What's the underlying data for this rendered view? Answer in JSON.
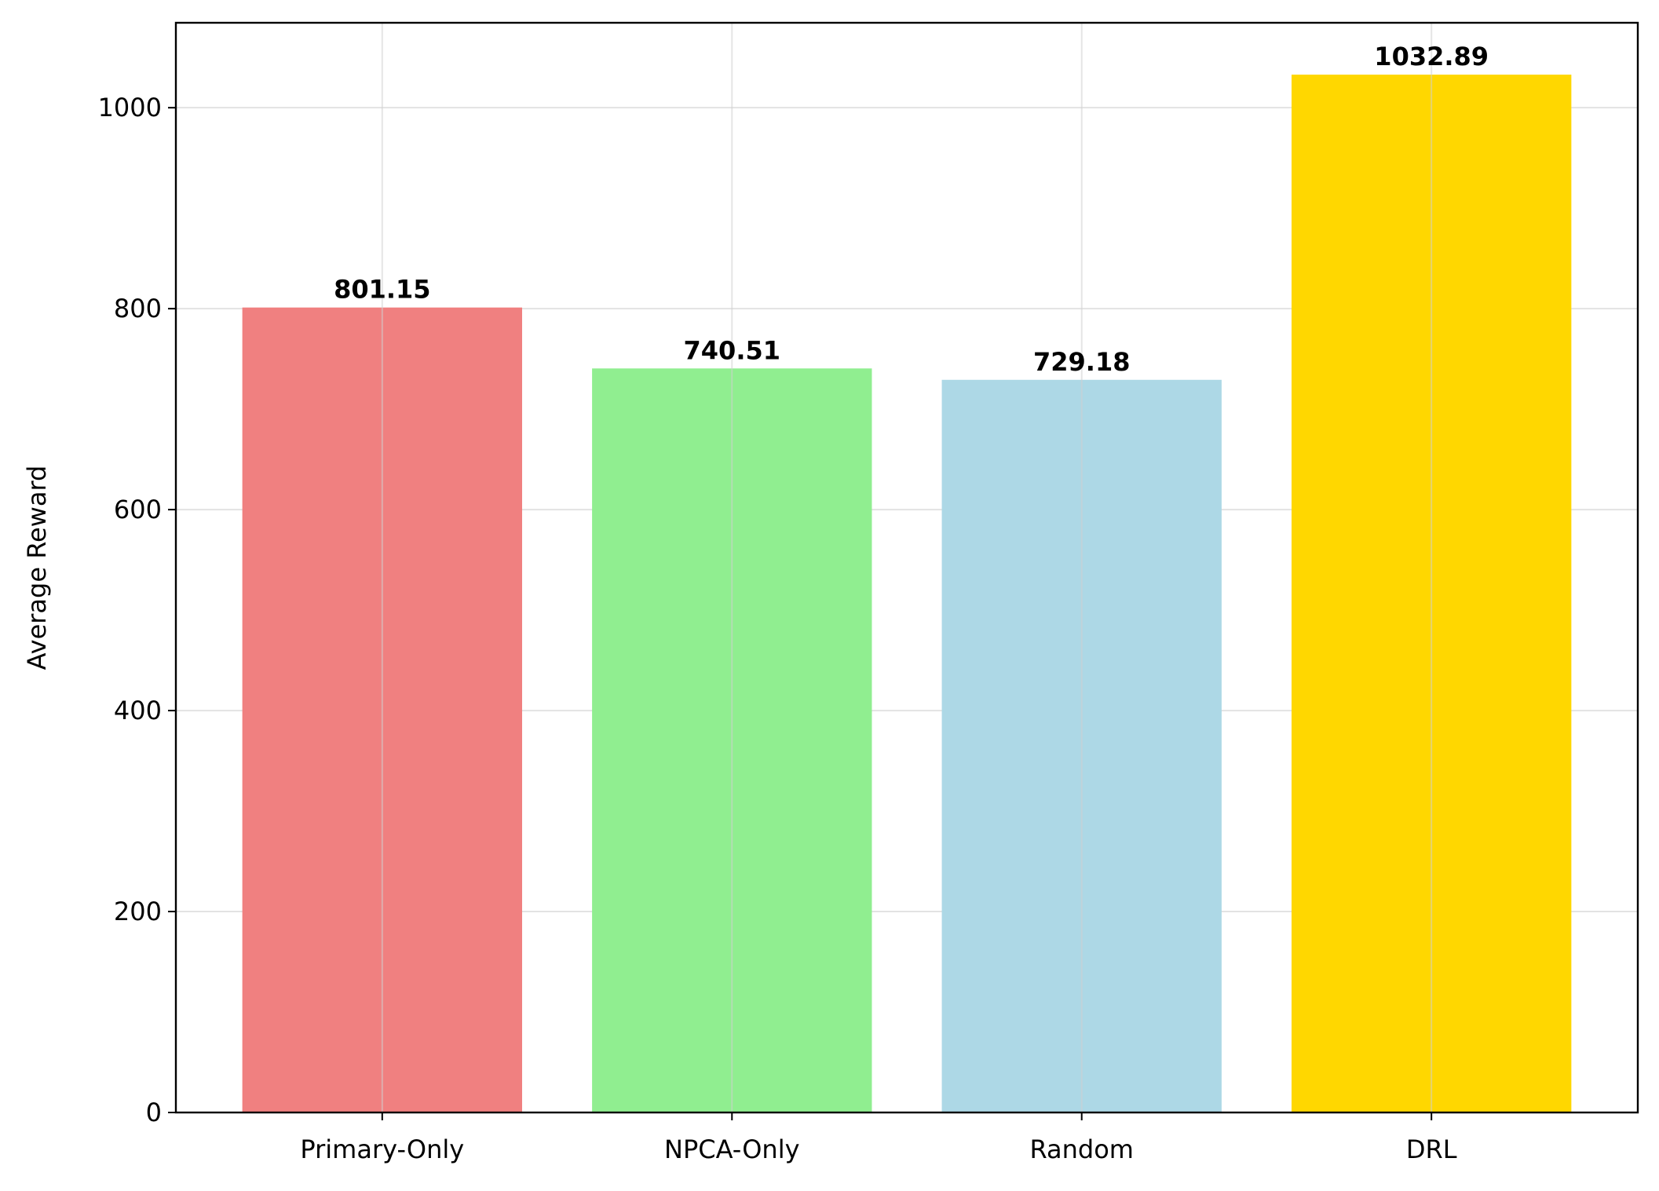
{
  "chart_data": {
    "type": "bar",
    "title": "",
    "xlabel": "",
    "ylabel": "Average Reward",
    "categories": [
      "Primary-Only",
      "NPCA-Only",
      "Random",
      "DRL"
    ],
    "values": [
      801.15,
      740.51,
      729.18,
      1032.89
    ],
    "value_labels": [
      "801.15",
      "740.51",
      "729.18",
      "1032.89"
    ],
    "colors": [
      "#F08080",
      "#90EE90",
      "#ADD8E6",
      "#FFD700"
    ],
    "ylim": [
      0,
      1084.53
    ],
    "yticks": [
      0,
      200,
      400,
      600,
      800,
      1000
    ],
    "grid": true,
    "legend": "none"
  }
}
